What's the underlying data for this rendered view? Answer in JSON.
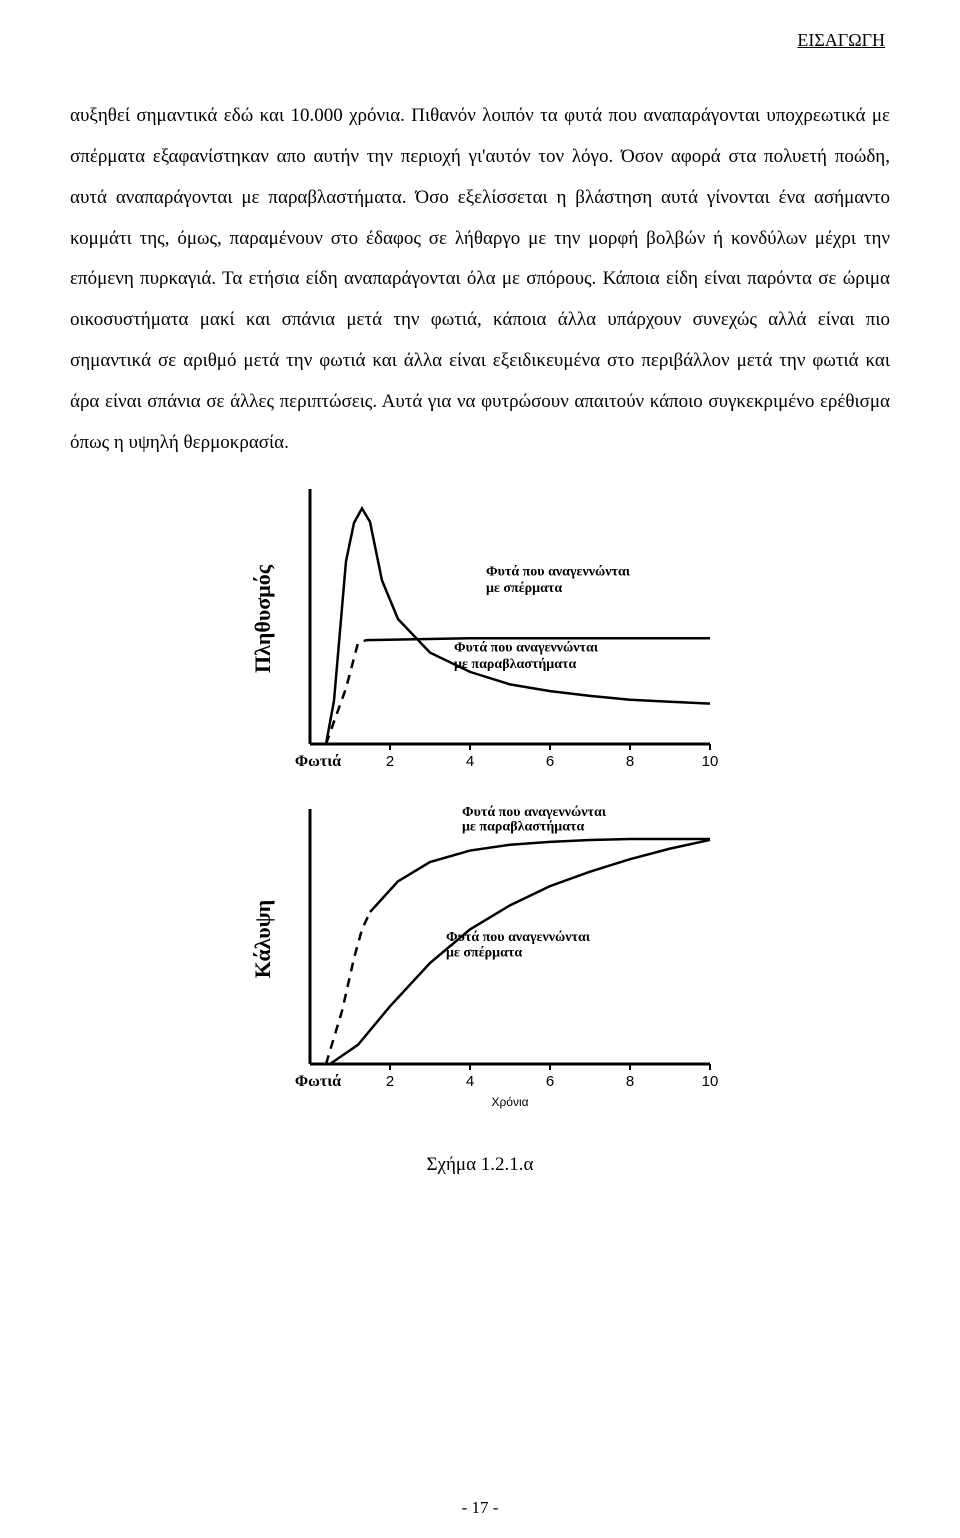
{
  "header": {
    "section": "ΕΙΣΑΓΩΓΗ"
  },
  "body": {
    "paragraph": "αυξηθεί σημαντικά εδώ και 10.000 χρόνια. Πιθανόν λοιπόν τα φυτά που αναπαράγονται υποχρεωτικά με σπέρματα εξαφανίστηκαν απο αυτήν την περιοχή γι'αυτόν τον λόγο. Όσον αφορά στα πολυετή ποώδη, αυτά αναπαράγονται με παραβλαστήματα. Όσο εξελίσσεται η βλάστηση αυτά γίνονται ένα ασήμαντο κομμάτι της, όμως, παραμένουν στο έδαφος σε λήθαργο με την μορφή βολβών ή κονδύλων μέχρι την επόμενη πυρκαγιά. Τα ετήσια είδη αναπαράγονται όλα με σπόρους. Κάποια είδη είναι παρόντα σε ώριμα οικοσυστήματα μακί και σπάνια μετά την φωτιά, κάποια άλλα υπάρχουν συνεχώς αλλά είναι πιο σημαντικά σε αριθμό μετά την φωτιά και άλλα είναι εξειδικευμένα στο περιβάλλον μετά την φωτιά και άρα είναι σπάνια σε άλλες περιπτώσεις. Αυτά για να φυτρώσουν απαιτούν κάποιο συγκεκριμένο ερέθισμα όπως η υψηλή θερμοκρασία."
  },
  "figure": {
    "caption": "Σχήμα 1.2.1.α",
    "chart1": {
      "type": "line",
      "y_label": "Πληθυσμός",
      "x_origin_label": "Φωτιά",
      "x_ticks": [
        2,
        4,
        6,
        8,
        10
      ],
      "axis_color": "#000000",
      "line_color": "#000000",
      "line_width": 2.5,
      "background": "#ffffff",
      "series_seed": {
        "label_l1": "Φυτά που αναγεννώνται",
        "label_l2": "με σπέρματα",
        "points": [
          [
            0.4,
            0
          ],
          [
            0.6,
            45
          ],
          [
            0.9,
            190
          ],
          [
            1.1,
            230
          ],
          [
            1.3,
            245
          ],
          [
            1.5,
            231
          ],
          [
            1.8,
            170
          ],
          [
            2.2,
            130
          ],
          [
            3,
            95
          ],
          [
            4,
            75
          ],
          [
            5,
            62
          ],
          [
            6,
            55
          ],
          [
            7,
            50
          ],
          [
            8,
            46
          ],
          [
            9,
            44
          ],
          [
            10,
            42
          ]
        ]
      },
      "series_sprout": {
        "label_l1": "Φυτά που αναγεννώνται",
        "label_l2": "με παραβλαστήματα",
        "dashed_points": [
          [
            0.4,
            0
          ],
          [
            0.9,
            58
          ],
          [
            1.2,
            105
          ],
          [
            1.4,
            108
          ]
        ],
        "solid_points": [
          [
            1.4,
            108
          ],
          [
            4,
            110
          ],
          [
            10,
            110
          ]
        ]
      }
    },
    "chart2": {
      "type": "line",
      "y_label": "Κάλυψη",
      "x_origin_label": "Φωτιά",
      "x_axis_title": "Χρόνια",
      "x_ticks": [
        2,
        4,
        6,
        8,
        10
      ],
      "axis_color": "#000000",
      "line_color": "#000000",
      "line_width": 2.5,
      "background": "#ffffff",
      "series_sprout": {
        "label_l1": "Φυτά που αναγεννώνται",
        "label_l2": "με παραβλαστήματα",
        "dashed_points": [
          [
            0.4,
            0
          ],
          [
            0.8,
            55
          ],
          [
            1.1,
            110
          ],
          [
            1.3,
            140
          ],
          [
            1.5,
            158
          ]
        ],
        "solid_points": [
          [
            1.5,
            158
          ],
          [
            2.2,
            190
          ],
          [
            3,
            210
          ],
          [
            4,
            222
          ],
          [
            5,
            228
          ],
          [
            6,
            231
          ],
          [
            7,
            233
          ],
          [
            8,
            234
          ],
          [
            9,
            234
          ],
          [
            10,
            234
          ]
        ]
      },
      "series_seed": {
        "label_l1": "Φυτά που αναγεννώνται",
        "label_l2": "με σπέρματα",
        "points": [
          [
            0.5,
            0
          ],
          [
            1.2,
            20
          ],
          [
            2,
            60
          ],
          [
            3,
            105
          ],
          [
            4,
            140
          ],
          [
            5,
            165
          ],
          [
            6,
            185
          ],
          [
            7,
            200
          ],
          [
            8,
            213
          ],
          [
            9,
            224
          ],
          [
            10,
            233
          ]
        ]
      }
    }
  },
  "footer": {
    "page_number": "- 17 -"
  }
}
